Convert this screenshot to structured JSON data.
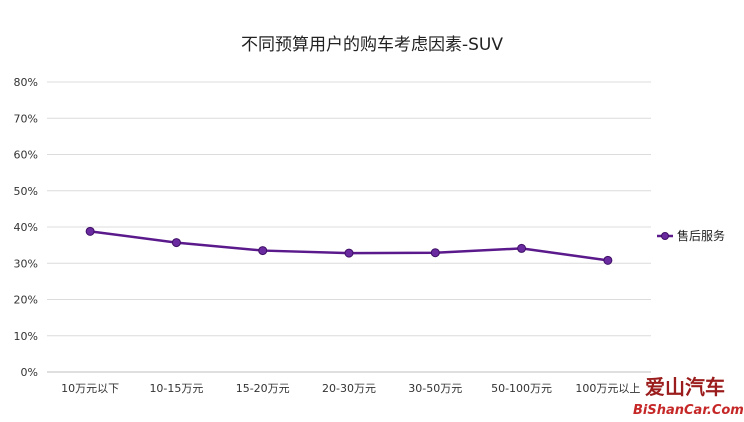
{
  "chart_data": {
    "type": "line",
    "title": "不同预算用户的购车考虑因素-SUV",
    "categories": [
      "10万元以下",
      "10-15万元",
      "15-20万元",
      "20-30万元",
      "30-50万元",
      "50-100万元",
      "100万元以上"
    ],
    "series": [
      {
        "name": "售后服务",
        "values": [
          38.8,
          35.7,
          33.5,
          32.8,
          32.9,
          34.1,
          30.8
        ],
        "color": "#5b1a8c"
      }
    ],
    "y_ticks": [
      "0%",
      "10%",
      "20%",
      "30%",
      "40%",
      "50%",
      "60%",
      "70%",
      "80%"
    ],
    "ylim": [
      0,
      80
    ],
    "grid": true,
    "legend_position": "right"
  },
  "watermark": {
    "cn": "爱山汽车",
    "en": "BiShanCar.Com"
  }
}
